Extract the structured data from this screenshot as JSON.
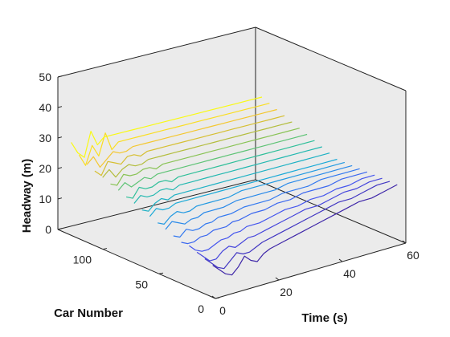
{
  "chart_data": {
    "type": "line",
    "title": "",
    "xlabel": "Time (s)",
    "ylabel": "Car Number",
    "zlabel": "Headway (m)",
    "xlim": [
      0,
      60
    ],
    "ylim": [
      0,
      140
    ],
    "zlim": [
      0,
      50
    ],
    "xticks": [
      "0",
      "20",
      "40",
      "60"
    ],
    "yticks": [
      "0",
      "50",
      "100"
    ],
    "zticks": [
      "0",
      "10",
      "20",
      "30",
      "40",
      "50"
    ],
    "grid": false,
    "background": "#ebebeb",
    "colormap": "parula",
    "series": [
      {
        "car": 8,
        "t": [
          2,
          4,
          6,
          8,
          10,
          12,
          14,
          16,
          18,
          20,
          24,
          28,
          32,
          36,
          40,
          44,
          48,
          52,
          56,
          60
        ],
        "headway": [
          9,
          7,
          5,
          4,
          6,
          9,
          7,
          6,
          8,
          9,
          10,
          11,
          12,
          13,
          14,
          15,
          16,
          16,
          17,
          18
        ]
      },
      {
        "car": 15,
        "t": [
          2,
          4,
          6,
          8,
          10,
          12,
          14,
          16,
          18,
          20,
          24,
          28,
          32,
          36,
          40,
          44,
          48,
          52,
          56,
          60
        ],
        "headway": [
          10,
          8,
          6,
          5,
          7,
          9,
          8,
          8,
          9,
          10,
          11,
          12,
          13,
          14,
          15,
          16,
          16,
          17,
          18,
          18
        ]
      },
      {
        "car": 22,
        "t": [
          2,
          4,
          6,
          8,
          10,
          12,
          14,
          16,
          18,
          20,
          24,
          28,
          32,
          36,
          40,
          44,
          48,
          52,
          56,
          60
        ],
        "headway": [
          11,
          9,
          7,
          7,
          9,
          10,
          9,
          10,
          11,
          11,
          12,
          13,
          14,
          15,
          15,
          16,
          17,
          17,
          18,
          18
        ]
      },
      {
        "car": 29,
        "t": [
          2,
          4,
          6,
          8,
          10,
          12,
          14,
          16,
          18,
          20,
          24,
          28,
          32,
          36,
          40,
          44,
          48,
          52,
          56,
          60
        ],
        "headway": [
          12,
          10,
          9,
          9,
          10,
          11,
          11,
          12,
          12,
          13,
          13,
          14,
          15,
          15,
          16,
          16,
          17,
          17,
          18,
          18
        ]
      },
      {
        "car": 36,
        "t": [
          2,
          4,
          6,
          8,
          10,
          12,
          14,
          16,
          18,
          20,
          24,
          28,
          32,
          36,
          40,
          44,
          48,
          52,
          56,
          60
        ],
        "headway": [
          12,
          11,
          11,
          12,
          12,
          13,
          13,
          13,
          14,
          14,
          15,
          15,
          16,
          16,
          17,
          17,
          17,
          18,
          18,
          18
        ]
      },
      {
        "car": 43,
        "t": [
          2,
          4,
          6,
          8,
          10,
          12,
          14,
          16,
          18,
          20,
          24,
          28,
          32,
          36,
          40,
          44,
          48,
          52,
          56,
          60
        ],
        "headway": [
          13,
          12,
          14,
          13,
          13,
          14,
          14,
          15,
          15,
          15,
          16,
          16,
          16,
          17,
          17,
          17,
          18,
          18,
          18,
          18
        ]
      },
      {
        "car": 50,
        "t": [
          2,
          4,
          6,
          8,
          10,
          12,
          14,
          16,
          18,
          20,
          24,
          28,
          32,
          36,
          40,
          44,
          48,
          52,
          56,
          60
        ],
        "headway": [
          14,
          16,
          15,
          14,
          15,
          15,
          16,
          16,
          16,
          16,
          17,
          17,
          17,
          17,
          18,
          18,
          18,
          18,
          18,
          18
        ]
      },
      {
        "car": 57,
        "t": [
          2,
          4,
          6,
          8,
          10,
          12,
          14,
          16,
          18,
          20,
          24,
          28,
          32,
          36,
          40,
          44,
          48,
          52,
          56,
          60
        ],
        "headway": [
          15,
          14,
          16,
          17,
          16,
          16,
          17,
          17,
          17,
          17,
          17,
          18,
          18,
          18,
          18,
          18,
          18,
          18,
          18,
          18
        ]
      },
      {
        "car": 64,
        "t": [
          2,
          4,
          6,
          8,
          10,
          12,
          14,
          16,
          18,
          20,
          24,
          28,
          32,
          36,
          40,
          44,
          48,
          52,
          56,
          60
        ],
        "headway": [
          16,
          18,
          17,
          17,
          18,
          18,
          18,
          18,
          18,
          18,
          18,
          18,
          18,
          18,
          18,
          18,
          18,
          18,
          18,
          18
        ]
      },
      {
        "car": 71,
        "t": [
          2,
          4,
          6,
          8,
          10,
          12,
          14,
          16,
          18,
          20,
          24,
          28,
          32,
          36,
          40,
          44,
          48,
          52,
          56,
          60
        ],
        "headway": [
          17,
          16,
          18,
          19,
          18,
          19,
          19,
          19,
          19,
          19,
          19,
          19,
          19,
          19,
          19,
          19,
          19,
          19,
          19,
          19
        ]
      },
      {
        "car": 78,
        "t": [
          2,
          4,
          6,
          8,
          10,
          12,
          14,
          16,
          18,
          20,
          24,
          28,
          32,
          36,
          40,
          44,
          48,
          52,
          56,
          60
        ],
        "headway": [
          18,
          20,
          19,
          19,
          20,
          20,
          19,
          20,
          20,
          20,
          20,
          20,
          20,
          20,
          20,
          20,
          20,
          20,
          20,
          20
        ]
      },
      {
        "car": 85,
        "t": [
          2,
          4,
          6,
          8,
          10,
          12,
          14,
          16,
          18,
          20,
          24,
          28,
          32,
          36,
          40,
          44,
          48,
          52,
          56,
          60
        ],
        "headway": [
          19,
          18,
          21,
          20,
          20,
          21,
          21,
          20,
          21,
          21,
          21,
          21,
          21,
          21,
          21,
          21,
          21,
          21,
          21,
          21
        ]
      },
      {
        "car": 92,
        "t": [
          2,
          4,
          6,
          8,
          10,
          12,
          14,
          16,
          18,
          20,
          24,
          28,
          32,
          36,
          40,
          44,
          48,
          52,
          56,
          60
        ],
        "headway": [
          20,
          22,
          20,
          21,
          22,
          21,
          22,
          22,
          22,
          22,
          22,
          22,
          22,
          22,
          22,
          22,
          22,
          22,
          22,
          22
        ]
      },
      {
        "car": 99,
        "t": [
          2,
          4,
          6,
          8,
          10,
          12,
          14,
          16,
          18,
          20,
          24,
          28,
          32,
          36,
          40,
          44,
          48,
          52,
          56,
          60
        ],
        "headway": [
          21,
          20,
          23,
          22,
          22,
          23,
          23,
          22,
          23,
          23,
          23,
          23,
          23,
          23,
          23,
          23,
          23,
          23,
          23,
          23
        ]
      },
      {
        "car": 106,
        "t": [
          2,
          4,
          6,
          8,
          10,
          12,
          14,
          16,
          18,
          20,
          24,
          28,
          32,
          36,
          40,
          44,
          48,
          52,
          56,
          60
        ],
        "headway": [
          22,
          24,
          21,
          23,
          24,
          23,
          23,
          24,
          24,
          24,
          24,
          24,
          24,
          24,
          24,
          24,
          24,
          24,
          24,
          24
        ]
      },
      {
        "car": 113,
        "t": [
          2,
          4,
          6,
          8,
          10,
          12,
          14,
          16,
          18,
          20,
          24,
          28,
          32,
          36,
          40,
          44,
          48,
          52,
          56,
          60
        ],
        "headway": [
          23,
          21,
          25,
          24,
          23,
          25,
          25,
          24,
          25,
          25,
          25,
          25,
          25,
          25,
          25,
          25,
          25,
          25,
          25,
          25
        ]
      },
      {
        "car": 120,
        "t": [
          2,
          4,
          6,
          8,
          10,
          12,
          14,
          16,
          18,
          20,
          24,
          28,
          32,
          36,
          40,
          44,
          48,
          52,
          56,
          60
        ],
        "headway": [
          24,
          26,
          22,
          24,
          26,
          25,
          25,
          26,
          26,
          26,
          26,
          26,
          26,
          26,
          26,
          26,
          26,
          26,
          26,
          26
        ]
      },
      {
        "car": 127,
        "t": [
          2,
          4,
          6,
          8,
          10,
          12,
          14,
          16,
          18,
          20,
          24,
          28,
          32,
          36,
          40,
          44,
          48,
          52,
          56,
          60
        ],
        "headway": [
          26,
          22,
          28,
          24,
          31,
          25,
          27,
          27,
          27,
          27,
          27,
          27,
          27,
          27,
          27,
          27,
          27,
          27,
          27,
          27
        ]
      },
      {
        "car": 134,
        "t": [
          2,
          4,
          6,
          8,
          10,
          12,
          14,
          16,
          18,
          20,
          24,
          28,
          32,
          36,
          40,
          44,
          48,
          52,
          56,
          60
        ],
        "headway": [
          29,
          25,
          23,
          31,
          26,
          28,
          28,
          28,
          28,
          28,
          28,
          28,
          28,
          28,
          28,
          28,
          28,
          28,
          28,
          28
        ]
      }
    ]
  }
}
